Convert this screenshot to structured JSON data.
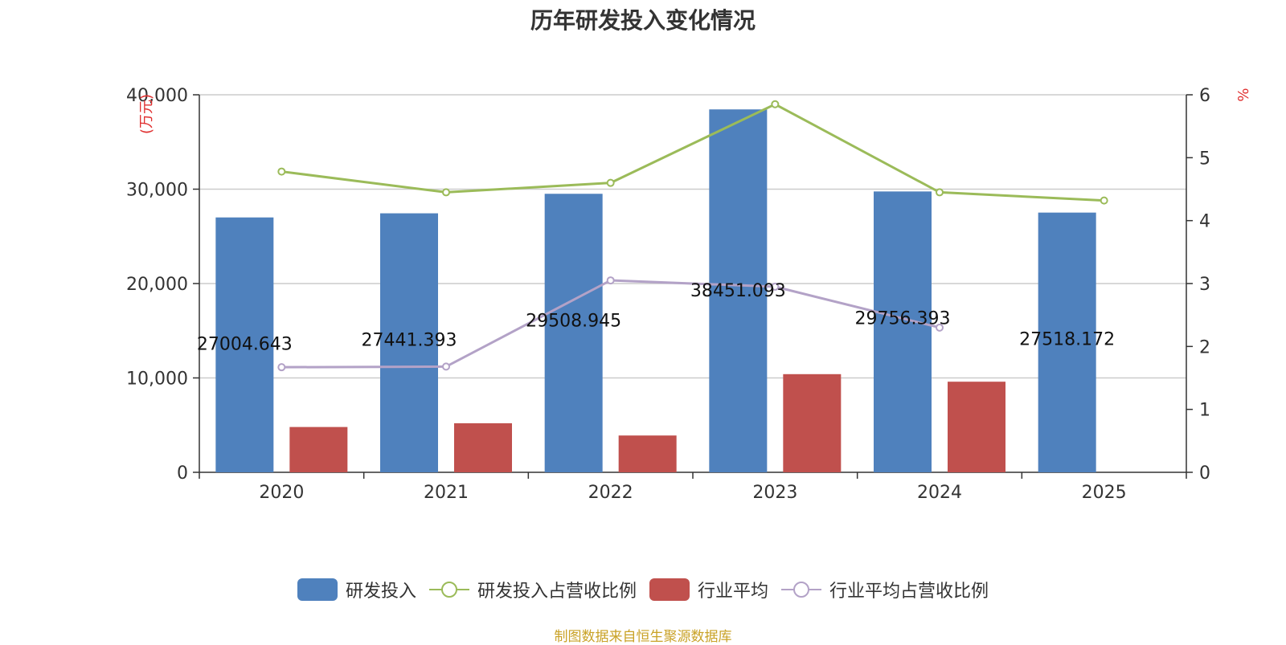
{
  "chart_data": {
    "type": "bar",
    "title": "历年研发投入变化情况",
    "categories": [
      "2020",
      "2021",
      "2022",
      "2023",
      "2024",
      "2025"
    ],
    "y_left": {
      "unit_label": "万元",
      "ylim": [
        0,
        40000
      ],
      "ticks": [
        "0",
        "10,000",
        "20,000",
        "30,000",
        "40,000"
      ],
      "tick_values": [
        0,
        10000,
        20000,
        30000,
        40000
      ]
    },
    "y_right": {
      "unit_label": "%",
      "ylim": [
        0,
        6
      ],
      "ticks": [
        "0",
        "1",
        "2",
        "3",
        "4",
        "5",
        "6"
      ],
      "tick_values": [
        0,
        1,
        2,
        3,
        4,
        5,
        6
      ]
    },
    "series": [
      {
        "name": "研发投入",
        "kind": "bar",
        "axis": "left",
        "color": "#4f81bd",
        "values": [
          27004.643,
          27441.393,
          29508.945,
          38451.093,
          29756.393,
          27518.172
        ],
        "labels": [
          "27004.643",
          "27441.393",
          "29508.945",
          "38451.093",
          "29756.393",
          "27518.172"
        ]
      },
      {
        "name": "研发投入占营收比例",
        "kind": "line",
        "axis": "right",
        "color": "#9bbb59",
        "values": [
          4.78,
          4.45,
          4.6,
          5.85,
          4.45,
          4.32
        ]
      },
      {
        "name": "行业平均",
        "kind": "bar",
        "axis": "left",
        "color": "#c0504d",
        "values": [
          4800,
          5200,
          3900,
          10400,
          9600,
          null
        ]
      },
      {
        "name": "行业平均占营收比例",
        "kind": "line",
        "axis": "right",
        "color": "#b3a2c7",
        "values": [
          1.67,
          1.68,
          3.05,
          2.95,
          2.3,
          null
        ]
      }
    ],
    "grid": true,
    "legend_position": "bottom"
  },
  "source_text": "制图数据来自恒生聚源数据库"
}
